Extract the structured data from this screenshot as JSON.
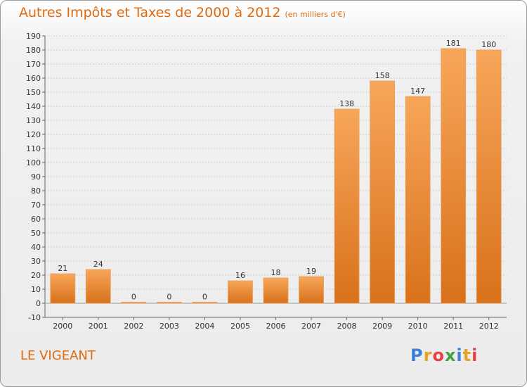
{
  "header": {
    "title": "Autres Impôts et Taxes de 2000 à 2012",
    "unit": "(en milliers d'€)"
  },
  "place": "LE VIGEANT",
  "logo": {
    "text": "Proxiti",
    "letter_colors": [
      "#3a7fd8",
      "#e8a020",
      "#e84040",
      "#43a047",
      "#3a7fd8",
      "#e8a020",
      "#e84040"
    ]
  },
  "colors": {
    "bar_light": "#f7a65a",
    "bar_dark": "#d9711a",
    "title": "#e06a10"
  },
  "chart_data": {
    "type": "bar",
    "categories": [
      "2000",
      "2001",
      "2002",
      "2003",
      "2004",
      "2005",
      "2006",
      "2007",
      "2008",
      "2009",
      "2010",
      "2011",
      "2012"
    ],
    "values": [
      21,
      24,
      0,
      0,
      0,
      16,
      18,
      19,
      138,
      158,
      147,
      181,
      180
    ],
    "data_labels": [
      "21",
      "24",
      "0",
      "0",
      "0",
      "16",
      "18",
      "19",
      "138",
      "158",
      "147",
      "181",
      "180"
    ],
    "title": "Autres Impôts et Taxes de 2000 à 2012",
    "ylim": [
      -10,
      190
    ],
    "yticks": [
      -10,
      0,
      10,
      20,
      30,
      40,
      50,
      60,
      70,
      80,
      90,
      100,
      110,
      120,
      130,
      140,
      150,
      160,
      170,
      180,
      190
    ],
    "grid": true
  }
}
